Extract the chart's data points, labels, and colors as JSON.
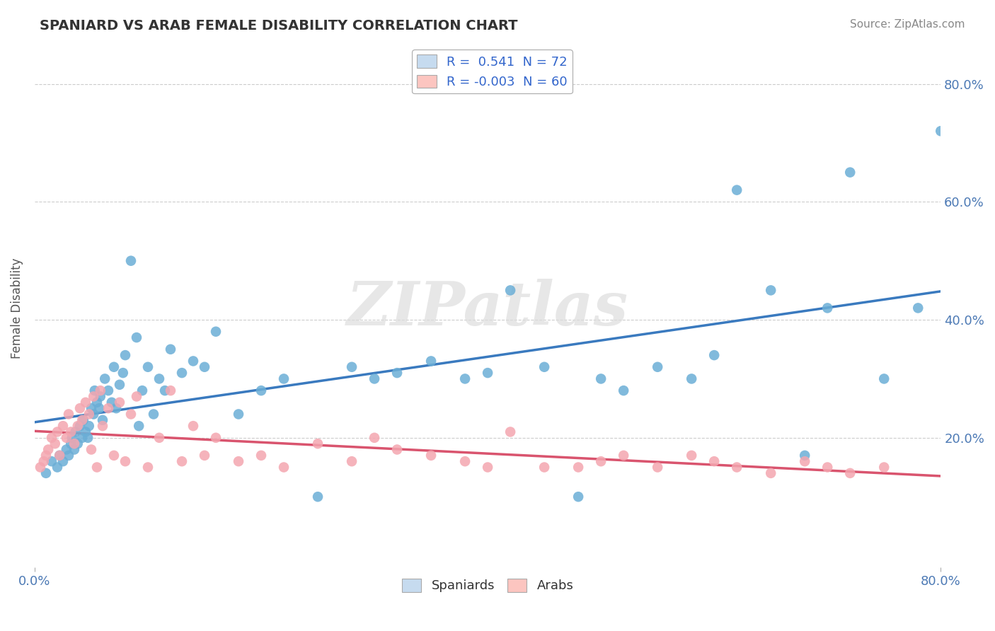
{
  "title": "SPANIARD VS ARAB FEMALE DISABILITY CORRELATION CHART",
  "source_text": "Source: ZipAtlas.com",
  "ylabel": "Female Disability",
  "xlim": [
    0.0,
    0.8
  ],
  "ylim": [
    -0.02,
    0.86
  ],
  "ytick_values": [
    0.2,
    0.4,
    0.6,
    0.8
  ],
  "ytick_labels": [
    "20.0%",
    "40.0%",
    "60.0%",
    "80.0%"
  ],
  "legend_r_blue": "0.541",
  "legend_n_blue": "72",
  "legend_r_pink": "-0.003",
  "legend_n_pink": "60",
  "blue_color": "#6baed6",
  "pink_color": "#f4a6b0",
  "blue_fill": "#c6dbef",
  "pink_fill": "#fcc5c0",
  "line_blue": "#3a7abf",
  "line_pink": "#d9546e",
  "watermark": "ZIPatlas",
  "spaniards_x": [
    0.01,
    0.015,
    0.02,
    0.022,
    0.025,
    0.028,
    0.03,
    0.032,
    0.033,
    0.035,
    0.036,
    0.038,
    0.04,
    0.042,
    0.043,
    0.045,
    0.047,
    0.048,
    0.05,
    0.052,
    0.053,
    0.055,
    0.057,
    0.058,
    0.06,
    0.062,
    0.065,
    0.068,
    0.07,
    0.072,
    0.075,
    0.078,
    0.08,
    0.085,
    0.09,
    0.092,
    0.095,
    0.1,
    0.105,
    0.11,
    0.115,
    0.12,
    0.13,
    0.14,
    0.15,
    0.16,
    0.18,
    0.2,
    0.22,
    0.25,
    0.28,
    0.3,
    0.32,
    0.35,
    0.38,
    0.4,
    0.42,
    0.45,
    0.48,
    0.5,
    0.52,
    0.55,
    0.58,
    0.6,
    0.62,
    0.65,
    0.68,
    0.7,
    0.72,
    0.75,
    0.78,
    0.8
  ],
  "spaniards_y": [
    0.14,
    0.16,
    0.15,
    0.17,
    0.16,
    0.18,
    0.17,
    0.19,
    0.2,
    0.18,
    0.21,
    0.19,
    0.22,
    0.2,
    0.23,
    0.21,
    0.2,
    0.22,
    0.25,
    0.24,
    0.28,
    0.26,
    0.25,
    0.27,
    0.23,
    0.3,
    0.28,
    0.26,
    0.32,
    0.25,
    0.29,
    0.31,
    0.34,
    0.5,
    0.37,
    0.22,
    0.28,
    0.32,
    0.24,
    0.3,
    0.28,
    0.35,
    0.31,
    0.33,
    0.32,
    0.38,
    0.24,
    0.28,
    0.3,
    0.1,
    0.32,
    0.3,
    0.31,
    0.33,
    0.3,
    0.31,
    0.45,
    0.32,
    0.1,
    0.3,
    0.28,
    0.32,
    0.3,
    0.34,
    0.62,
    0.45,
    0.17,
    0.42,
    0.65,
    0.3,
    0.42,
    0.72
  ],
  "arabs_x": [
    0.005,
    0.008,
    0.01,
    0.012,
    0.015,
    0.018,
    0.02,
    0.022,
    0.025,
    0.028,
    0.03,
    0.032,
    0.035,
    0.038,
    0.04,
    0.042,
    0.045,
    0.048,
    0.05,
    0.052,
    0.055,
    0.058,
    0.06,
    0.065,
    0.07,
    0.075,
    0.08,
    0.085,
    0.09,
    0.1,
    0.11,
    0.12,
    0.13,
    0.14,
    0.15,
    0.16,
    0.18,
    0.2,
    0.22,
    0.25,
    0.28,
    0.3,
    0.32,
    0.35,
    0.38,
    0.4,
    0.42,
    0.45,
    0.48,
    0.5,
    0.52,
    0.55,
    0.58,
    0.6,
    0.62,
    0.65,
    0.68,
    0.7,
    0.72,
    0.75
  ],
  "arabs_y": [
    0.15,
    0.16,
    0.17,
    0.18,
    0.2,
    0.19,
    0.21,
    0.17,
    0.22,
    0.2,
    0.24,
    0.21,
    0.19,
    0.22,
    0.25,
    0.23,
    0.26,
    0.24,
    0.18,
    0.27,
    0.15,
    0.28,
    0.22,
    0.25,
    0.17,
    0.26,
    0.16,
    0.24,
    0.27,
    0.15,
    0.2,
    0.28,
    0.16,
    0.22,
    0.17,
    0.2,
    0.16,
    0.17,
    0.15,
    0.19,
    0.16,
    0.2,
    0.18,
    0.17,
    0.16,
    0.15,
    0.21,
    0.15,
    0.15,
    0.16,
    0.17,
    0.15,
    0.17,
    0.16,
    0.15,
    0.14,
    0.16,
    0.15,
    0.14,
    0.15
  ]
}
